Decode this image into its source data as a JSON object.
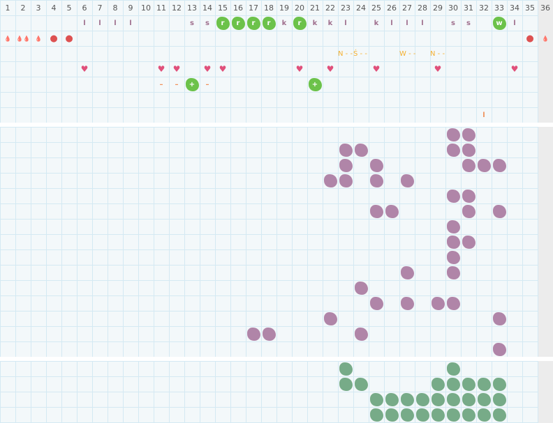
{
  "columns": [
    "1",
    "2",
    "3",
    "4",
    "5",
    "6",
    "7",
    "8",
    "9",
    "10",
    "11",
    "12",
    "13",
    "14",
    "15",
    "16",
    "17",
    "18",
    "19",
    "20",
    "21",
    "22",
    "23",
    "24",
    "25",
    "26",
    "27",
    "28",
    "29",
    "30",
    "31",
    "32",
    "33",
    "34",
    "35",
    "36"
  ],
  "colors": {
    "grid": "#d4e9f3",
    "background": "#f3f8fa",
    "green": "#6cc24a",
    "purple": "#b085a8",
    "teal": "#77ab88",
    "red": "#dd5151",
    "pink": "#e0507a",
    "orange": "#f5b030"
  },
  "top_rows": [
    [
      {
        "c": 6,
        "t": "l",
        "k": "letter"
      },
      {
        "c": 7,
        "t": "l",
        "k": "letter"
      },
      {
        "c": 8,
        "t": "l",
        "k": "letter"
      },
      {
        "c": 9,
        "t": "l",
        "k": "letter"
      },
      {
        "c": 13,
        "t": "s",
        "k": "letter"
      },
      {
        "c": 14,
        "t": "s",
        "k": "letter"
      },
      {
        "c": 15,
        "t": "r",
        "k": "green"
      },
      {
        "c": 16,
        "t": "r",
        "k": "green"
      },
      {
        "c": 17,
        "t": "r",
        "k": "green"
      },
      {
        "c": 18,
        "t": "r",
        "k": "green"
      },
      {
        "c": 19,
        "t": "k",
        "k": "letter"
      },
      {
        "c": 20,
        "t": "r",
        "k": "green"
      },
      {
        "c": 21,
        "t": "k",
        "k": "letter"
      },
      {
        "c": 22,
        "t": "k",
        "k": "letter"
      },
      {
        "c": 23,
        "t": "l",
        "k": "letter"
      },
      {
        "c": 25,
        "t": "k",
        "k": "letter"
      },
      {
        "c": 26,
        "t": "l",
        "k": "letter"
      },
      {
        "c": 27,
        "t": "l",
        "k": "letter"
      },
      {
        "c": 28,
        "t": "l",
        "k": "letter"
      },
      {
        "c": 30,
        "t": "s",
        "k": "letter"
      },
      {
        "c": 31,
        "t": "s",
        "k": "letter"
      },
      {
        "c": 33,
        "t": "w",
        "k": "green"
      },
      {
        "c": 34,
        "t": "l",
        "k": "letter"
      }
    ],
    [
      {
        "c": 1,
        "t": "💧",
        "k": "drop"
      },
      {
        "c": 2,
        "t": "💧💧",
        "k": "drop"
      },
      {
        "c": 3,
        "t": "💧",
        "k": "drop"
      },
      {
        "c": 4,
        "t": "●",
        "k": "dot"
      },
      {
        "c": 5,
        "t": "●",
        "k": "dot"
      },
      {
        "c": 35,
        "t": "●",
        "k": "dot"
      },
      {
        "c": 36,
        "t": "💧",
        "k": "drop"
      }
    ],
    [
      {
        "c": 23,
        "t": "N - -",
        "k": "orange"
      },
      {
        "c": 24,
        "t": "Ś - -",
        "k": "orange"
      },
      {
        "c": 27,
        "t": "W - -",
        "k": "orange"
      },
      {
        "c": 29,
        "t": "N - -",
        "k": "orange"
      }
    ],
    [
      {
        "c": 6,
        "t": "♥",
        "k": "heart"
      },
      {
        "c": 11,
        "t": "♥",
        "k": "heart"
      },
      {
        "c": 12,
        "t": "♥",
        "k": "heart"
      },
      {
        "c": 14,
        "t": "♥",
        "k": "heart"
      },
      {
        "c": 15,
        "t": "♥",
        "k": "heart"
      },
      {
        "c": 20,
        "t": "♥",
        "k": "heart"
      },
      {
        "c": 22,
        "t": "♥",
        "k": "heart"
      },
      {
        "c": 25,
        "t": "♥",
        "k": "heart"
      },
      {
        "c": 29,
        "t": "♥",
        "k": "heart"
      },
      {
        "c": 34,
        "t": "♥",
        "k": "heart"
      }
    ],
    [
      {
        "c": 11,
        "t": "–",
        "k": "dash"
      },
      {
        "c": 12,
        "t": "–",
        "k": "dash"
      },
      {
        "c": 13,
        "t": "+",
        "k": "green"
      },
      {
        "c": 14,
        "t": "–",
        "k": "dash"
      },
      {
        "c": 21,
        "t": "+",
        "k": "green"
      }
    ],
    [],
    [
      {
        "c": 32,
        "t": "l",
        "k": "dash"
      }
    ]
  ],
  "purple_rows": [
    [
      30,
      31
    ],
    [
      23,
      24,
      30,
      31
    ],
    [
      23,
      25,
      31,
      32,
      33
    ],
    [
      22,
      23,
      25,
      27
    ],
    [
      30,
      31
    ],
    [
      25,
      26,
      31,
      33
    ],
    [
      30
    ],
    [
      30,
      31
    ],
    [
      30
    ],
    [
      27,
      30
    ],
    [
      24
    ],
    [
      25,
      27,
      29,
      30
    ],
    [
      22,
      33
    ],
    [
      17,
      18,
      24
    ],
    [
      33
    ]
  ],
  "teal_rows": [
    [
      23,
      30
    ],
    [
      23,
      24,
      29,
      30,
      31,
      32,
      33
    ],
    [
      25,
      26,
      27,
      28,
      29,
      30,
      31,
      32,
      33
    ],
    [
      25,
      26,
      27,
      28,
      29,
      30,
      31,
      32,
      33
    ]
  ]
}
